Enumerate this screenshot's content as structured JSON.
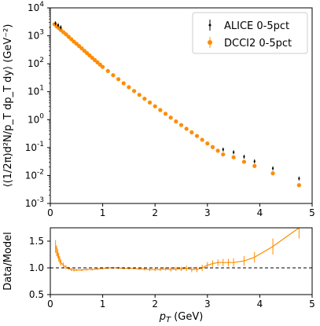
{
  "chart_data": [
    {
      "type": "scatter",
      "scale": {
        "y": "log"
      },
      "xlim": [
        0,
        5
      ],
      "ylim": [
        0.001,
        10000
      ],
      "ylabel": "⟨(1/2π)d²N/p_T dp_T dy⟩ (GeV⁻²)",
      "xlabel": "",
      "legend": "top-right",
      "x_ticks": [
        "0",
        "1",
        "2",
        "3",
        "4",
        "5"
      ],
      "y_ticks": [
        "10",
        "10",
        "10",
        "10",
        "10",
        "10",
        "10",
        "10"
      ],
      "y_tick_exponents": [
        "-3",
        "-2",
        "-1",
        "0",
        "1",
        "2",
        "3",
        "4"
      ],
      "y_tick_values": [
        0.001,
        0.01,
        0.1,
        1,
        10,
        100,
        1000,
        10000
      ],
      "series": [
        {
          "name": "ALICE 0-5pct",
          "color": "#000000",
          "marker": "errorbar-point",
          "x": [
            0.1,
            0.15,
            0.2,
            3.3,
            3.5,
            3.7,
            3.9,
            4.25,
            4.75
          ],
          "y": [
            2800,
            2400,
            2000,
            0.085,
            0.068,
            0.047,
            0.032,
            0.018,
            0.0078
          ]
        },
        {
          "name": "DCCI2 0-5pct",
          "color": "#ff8c00",
          "marker": "circle",
          "x": [
            0.08,
            0.12,
            0.16,
            0.2,
            0.25,
            0.3,
            0.35,
            0.4,
            0.45,
            0.5,
            0.55,
            0.6,
            0.65,
            0.7,
            0.75,
            0.8,
            0.85,
            0.9,
            0.95,
            1.0,
            1.1,
            1.2,
            1.3,
            1.4,
            1.5,
            1.6,
            1.7,
            1.8,
            1.9,
            2.0,
            2.1,
            2.2,
            2.3,
            2.4,
            2.5,
            2.6,
            2.7,
            2.8,
            2.9,
            3.0,
            3.1,
            3.2,
            3.3,
            3.5,
            3.7,
            3.9,
            4.25,
            4.75
          ],
          "y": [
            2600,
            2200,
            1900,
            1620,
            1350,
            1130,
            920,
            760,
            620,
            520,
            430,
            355,
            290,
            240,
            198,
            163,
            135,
            112,
            93,
            77,
            55,
            39,
            28,
            20,
            14.5,
            10.6,
            7.7,
            5.6,
            4.1,
            3.0,
            2.2,
            1.62,
            1.18,
            0.86,
            0.64,
            0.47,
            0.35,
            0.26,
            0.19,
            0.14,
            0.104,
            0.077,
            0.057,
            0.045,
            0.031,
            0.022,
            0.012,
            0.0045
          ]
        }
      ]
    },
    {
      "type": "line",
      "xlim": [
        0,
        5
      ],
      "ylim": [
        0.5,
        1.75
      ],
      "xlabel": "p_T (GeV)",
      "ylabel": "Data/Model",
      "x_ticks": [
        "0",
        "1",
        "2",
        "3",
        "4",
        "5"
      ],
      "y_ticks": [
        "0.5",
        "1.0",
        "1.5"
      ],
      "reference_line": {
        "y": 1.0,
        "style": "dashed",
        "color": "#000000"
      },
      "series": [
        {
          "color": "#ff8c00",
          "x": [
            0.1,
            0.12,
            0.14,
            0.16,
            0.18,
            0.2,
            0.25,
            0.3,
            0.35,
            0.4,
            0.45,
            0.5,
            0.6,
            0.7,
            0.8,
            0.9,
            1.0,
            1.1,
            1.2,
            1.3,
            1.4,
            1.5,
            1.6,
            1.7,
            1.8,
            1.9,
            2.0,
            2.1,
            2.2,
            2.3,
            2.4,
            2.5,
            2.6,
            2.7,
            2.8,
            2.9,
            3.0,
            3.1,
            3.2,
            3.3,
            3.4,
            3.5,
            3.7,
            3.9,
            4.25,
            4.75
          ],
          "y": [
            1.4,
            1.32,
            1.27,
            1.2,
            1.15,
            1.1,
            1.05,
            1.01,
            0.99,
            0.97,
            0.96,
            0.96,
            0.96,
            0.97,
            0.97,
            0.98,
            0.99,
            1.0,
            1.0,
            1.0,
            0.99,
            0.99,
            0.99,
            0.98,
            0.98,
            0.97,
            0.97,
            0.97,
            0.98,
            0.97,
            0.98,
            0.98,
            0.99,
            0.97,
            0.97,
            1.0,
            1.05,
            1.08,
            1.1,
            1.1,
            1.1,
            1.1,
            1.13,
            1.2,
            1.4,
            1.75
          ],
          "yerr": [
            0.12,
            0.1,
            0.09,
            0.08,
            0.07,
            0.06,
            0.05,
            0.04,
            0.03,
            0.03,
            0.03,
            0.02,
            0.02,
            0.02,
            0.02,
            0.02,
            0.02,
            0.02,
            0.02,
            0.02,
            0.02,
            0.02,
            0.02,
            0.02,
            0.03,
            0.03,
            0.03,
            0.03,
            0.03,
            0.04,
            0.04,
            0.04,
            0.05,
            0.05,
            0.05,
            0.06,
            0.06,
            0.06,
            0.06,
            0.07,
            0.07,
            0.08,
            0.09,
            0.1,
            0.15,
            0.2
          ]
        }
      ]
    }
  ]
}
